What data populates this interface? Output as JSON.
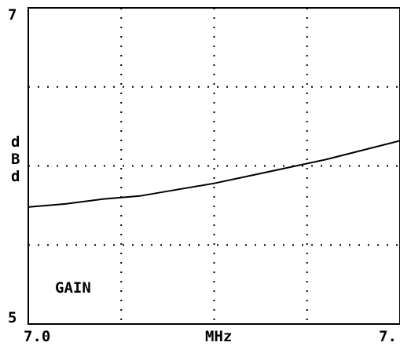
{
  "chart_data": {
    "type": "line",
    "xlim": [
      7.0,
      7.3
    ],
    "ylim": [
      5,
      7
    ],
    "xlabel": "MHz",
    "ylabel": "dBd",
    "x_tick_labels": [
      "7.0",
      "7."
    ],
    "y_tick_labels": [
      "7",
      "5"
    ],
    "annotation": "GAIN",
    "grid": true,
    "series": [
      {
        "x": [
          7.0,
          7.03,
          7.06,
          7.09,
          7.12,
          7.15,
          7.18,
          7.21,
          7.24,
          7.27,
          7.3
        ],
        "y": [
          5.74,
          5.76,
          5.79,
          5.81,
          5.85,
          5.89,
          5.94,
          5.99,
          6.04,
          6.1,
          6.16
        ],
        "color": "#000000"
      }
    ]
  }
}
